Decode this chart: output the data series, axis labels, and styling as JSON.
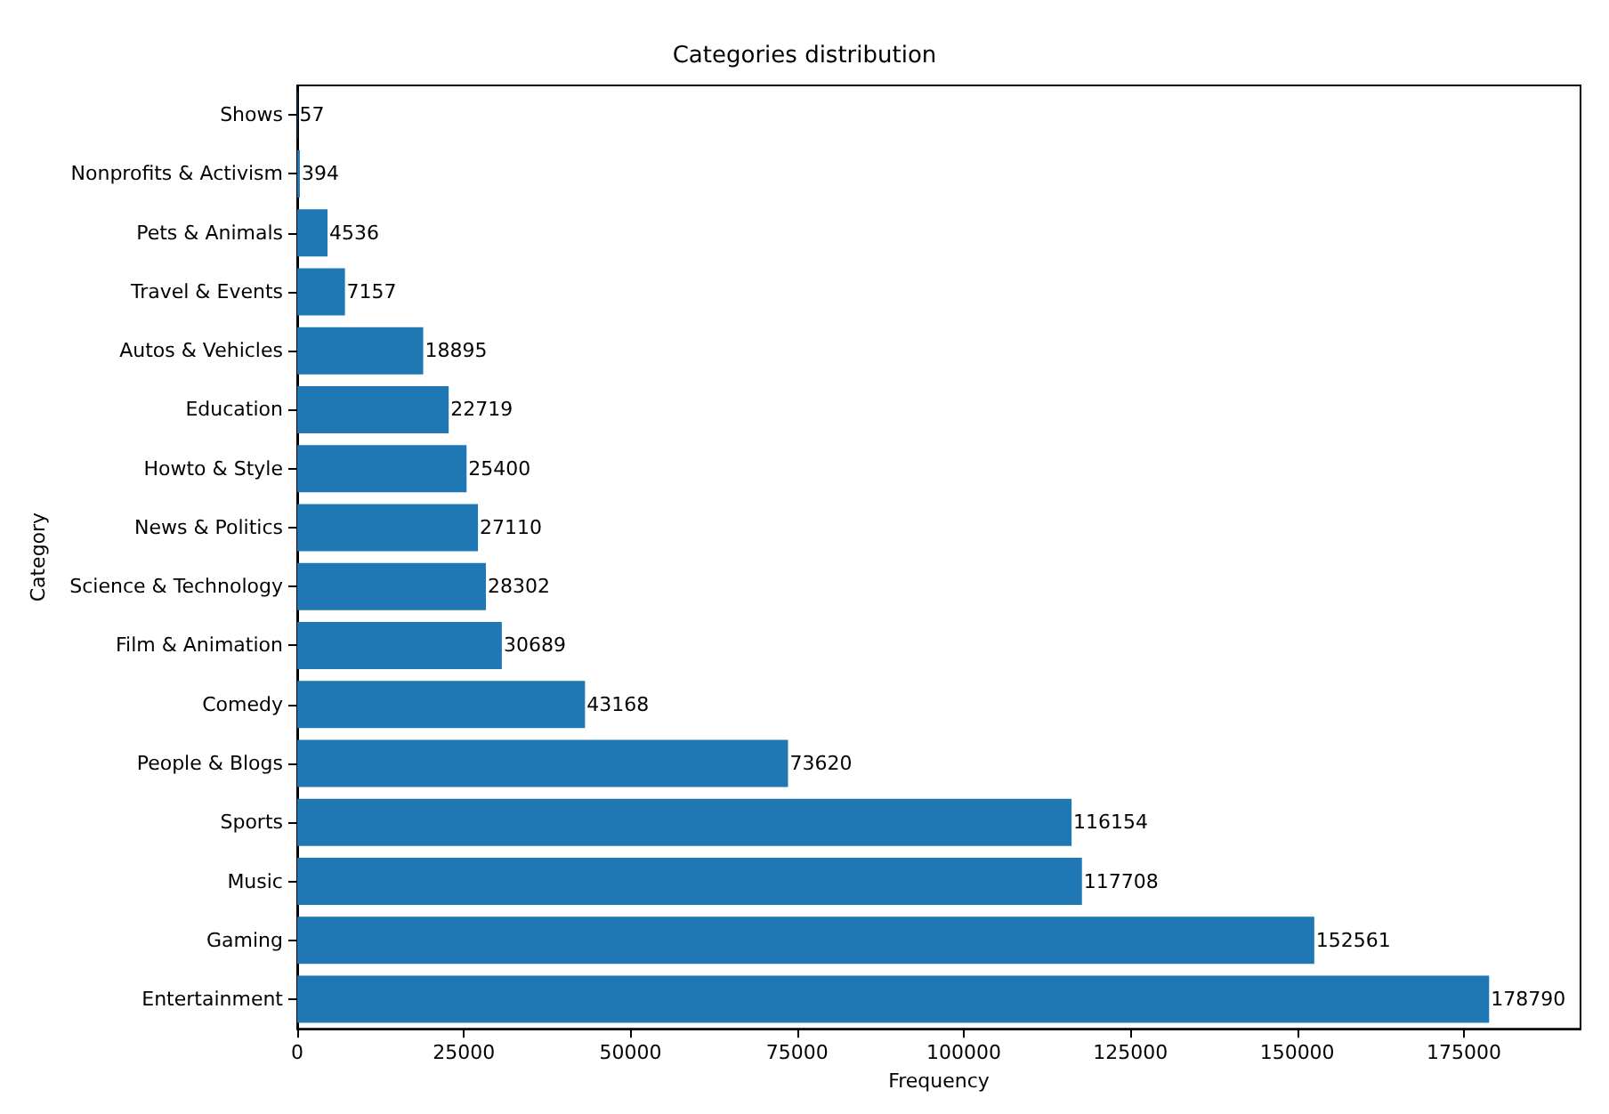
{
  "chart_data": {
    "type": "bar",
    "orientation": "horizontal",
    "title": "Categories distribution",
    "xlabel": "Frequency",
    "ylabel": "Category",
    "categories": [
      "Shows",
      "Nonprofits & Activism",
      "Pets & Animals",
      "Travel & Events",
      "Autos & Vehicles",
      "Education",
      "Howto & Style",
      "News & Politics",
      "Science & Technology",
      "Film & Animation",
      "Comedy",
      "People & Blogs",
      "Sports",
      "Music",
      "Gaming",
      "Entertainment"
    ],
    "values": [
      57,
      394,
      4536,
      7157,
      18895,
      22719,
      25400,
      27110,
      28302,
      30689,
      43168,
      73620,
      116154,
      117708,
      152561,
      178790
    ],
    "color": "#1f77b4",
    "data_labels": true,
    "xlim": [
      0,
      192500
    ],
    "xticks": [
      0,
      25000,
      50000,
      75000,
      100000,
      125000,
      150000,
      175000
    ],
    "grid": false
  }
}
